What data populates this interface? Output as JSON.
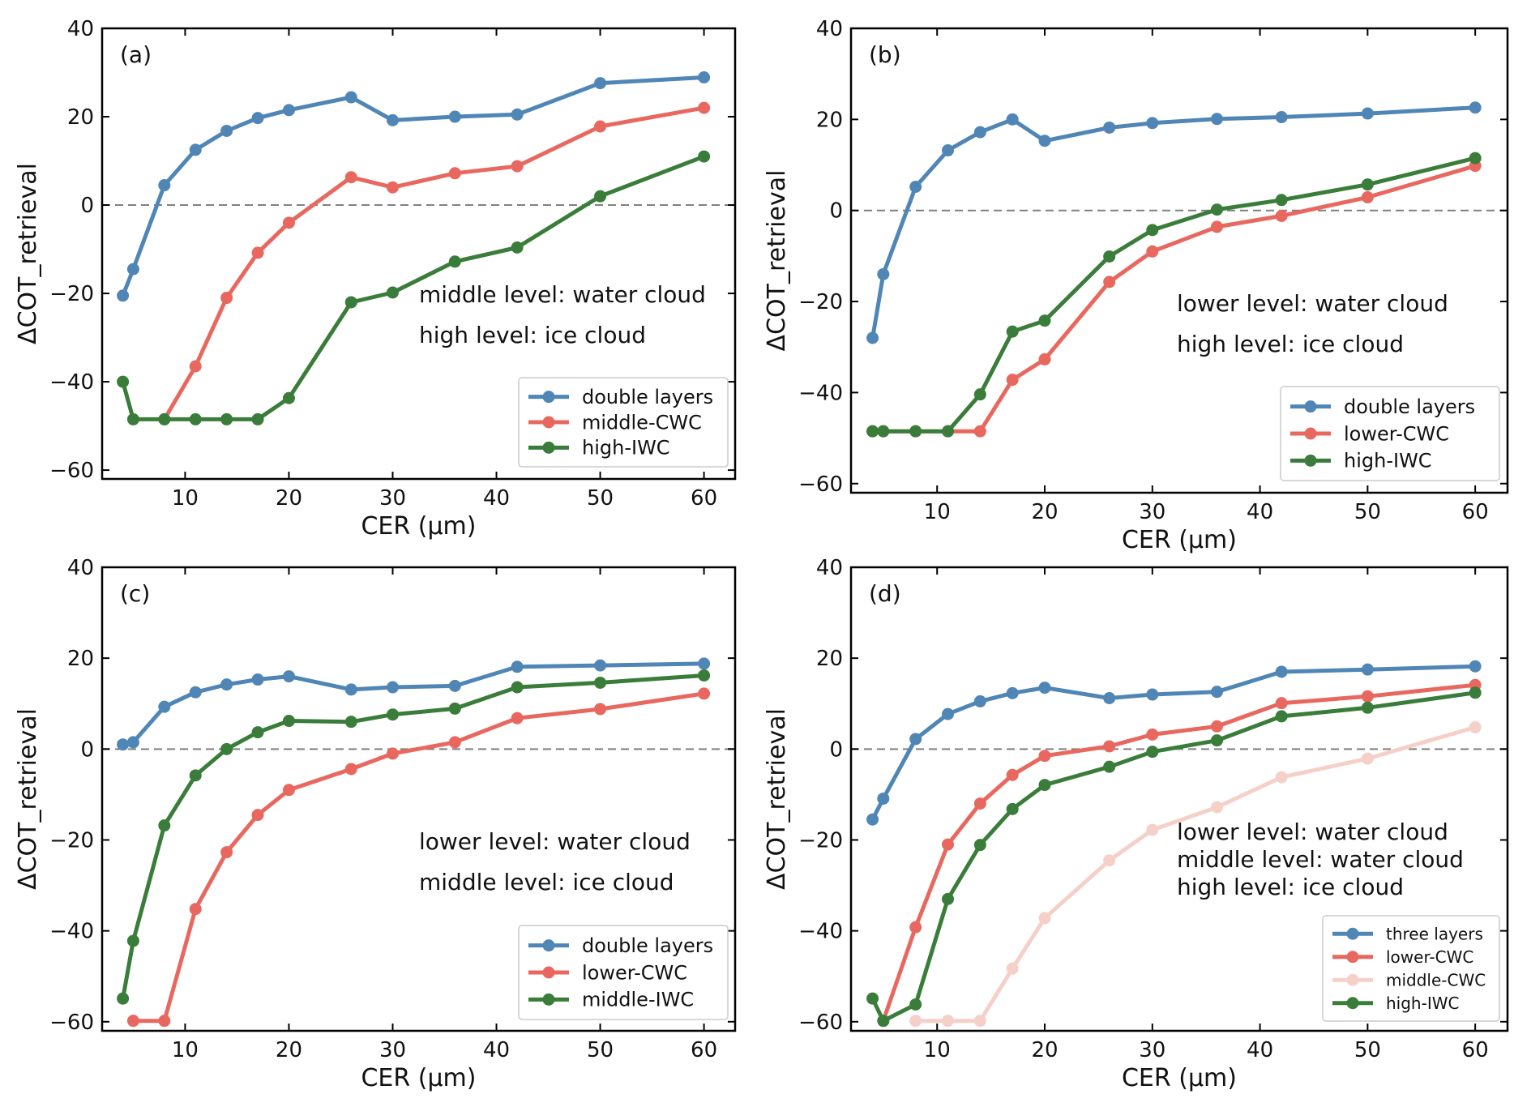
{
  "chart_data": [
    {
      "type": "line",
      "panel_label": "(a)",
      "xlabel": "CER (µm)",
      "ylabel": "ΔCOT_retrieval",
      "xlim": [
        2,
        63
      ],
      "ylim": [
        -62,
        40
      ],
      "xticks": [
        "10",
        "20",
        "30",
        "40",
        "50",
        "60"
      ],
      "yticks": [
        "−60",
        "−40",
        "−20",
        "0",
        "20",
        "40"
      ],
      "annotations": [
        "middle level: water cloud",
        "high level: ice cloud"
      ],
      "legend_position": "lower-right",
      "series": [
        {
          "name": "double layers",
          "color": "#5086b5",
          "x": [
            4,
            5,
            8,
            11,
            14,
            17,
            20,
            26,
            30,
            36,
            42,
            50,
            60
          ],
          "y": [
            -20.5,
            -14.5,
            4.5,
            12.5,
            16.8,
            19.7,
            21.5,
            24.4,
            19.2,
            20.0,
            20.5,
            27.6,
            28.9
          ]
        },
        {
          "name": "middle-CWC",
          "color": "#e8685f",
          "x": [
            8,
            11,
            14,
            17,
            20,
            26,
            30,
            36,
            42,
            50,
            60
          ],
          "y": [
            -48.5,
            -36.5,
            -21.0,
            -10.8,
            -4.0,
            6.3,
            4.0,
            7.2,
            8.8,
            17.8,
            22.0
          ]
        },
        {
          "name": "high-IWC",
          "color": "#3a7d3a",
          "x": [
            4,
            5,
            8,
            11,
            14,
            17,
            20,
            26,
            30,
            36,
            42,
            50,
            60
          ],
          "y": [
            -40.0,
            -48.5,
            -48.5,
            -48.5,
            -48.5,
            -48.5,
            -43.7,
            -22.0,
            -19.8,
            -12.8,
            -9.6,
            2.0,
            11.0
          ]
        }
      ]
    },
    {
      "type": "line",
      "panel_label": "(b)",
      "xlabel": "CER (µm)",
      "ylabel": "ΔCOT_retrieval",
      "xlim": [
        2,
        63
      ],
      "ylim": [
        -62,
        40
      ],
      "xticks": [
        "10",
        "20",
        "30",
        "40",
        "50",
        "60"
      ],
      "yticks": [
        "−60",
        "−40",
        "−20",
        "0",
        "20",
        "40"
      ],
      "annotations": [
        "lower level: water cloud",
        "high level: ice cloud"
      ],
      "legend_position": "lower-right",
      "series": [
        {
          "name": "double layers",
          "color": "#5086b5",
          "x": [
            4,
            5,
            8,
            11,
            14,
            17,
            20,
            26,
            30,
            36,
            42,
            50,
            60
          ],
          "y": [
            -28.0,
            -14.0,
            5.2,
            13.2,
            17.2,
            20.0,
            15.3,
            18.2,
            19.2,
            20.1,
            20.5,
            21.3,
            22.6
          ]
        },
        {
          "name": "lower-CWC",
          "color": "#e8685f",
          "x": [
            4,
            5,
            8,
            11,
            14,
            17,
            20,
            26,
            30,
            36,
            42,
            50,
            60
          ],
          "y": [
            -48.5,
            -48.5,
            -48.5,
            -48.5,
            -48.5,
            -37.2,
            -32.7,
            -15.7,
            -9.0,
            -3.6,
            -1.2,
            2.9,
            9.8
          ]
        },
        {
          "name": "high-IWC",
          "color": "#3a7d3a",
          "x": [
            4,
            5,
            8,
            11,
            14,
            17,
            20,
            26,
            30,
            36,
            42,
            50,
            60
          ],
          "y": [
            -48.5,
            -48.5,
            -48.5,
            -48.5,
            -40.4,
            -26.6,
            -24.2,
            -10.1,
            -4.3,
            0.2,
            2.3,
            5.7,
            11.5
          ]
        }
      ]
    },
    {
      "type": "line",
      "panel_label": "(c)",
      "xlabel": "CER (µm)",
      "ylabel": "ΔCOT_retrieval",
      "xlim": [
        2,
        63
      ],
      "ylim": [
        -62,
        40
      ],
      "xticks": [
        "10",
        "20",
        "30",
        "40",
        "50",
        "60"
      ],
      "yticks": [
        "−60",
        "−40",
        "−20",
        "0",
        "20",
        "40"
      ],
      "annotations": [
        "lower level: water cloud",
        "middle level: ice cloud"
      ],
      "legend_position": "lower-right",
      "series": [
        {
          "name": "double layers",
          "color": "#5086b5",
          "x": [
            4,
            5,
            8,
            11,
            14,
            17,
            20,
            26,
            30,
            36,
            42,
            50,
            60
          ],
          "y": [
            1.0,
            1.5,
            9.3,
            12.5,
            14.2,
            15.3,
            16.0,
            13.1,
            13.6,
            13.9,
            18.1,
            18.4,
            18.8
          ]
        },
        {
          "name": "lower-CWC",
          "color": "#e8685f",
          "x": [
            5,
            8,
            11,
            14,
            17,
            20,
            26,
            30,
            36,
            42,
            50,
            60
          ],
          "y": [
            -59.8,
            -59.8,
            -35.2,
            -22.7,
            -14.5,
            -9.0,
            -4.4,
            -1.0,
            1.5,
            6.8,
            8.8,
            12.2
          ]
        },
        {
          "name": "middle-IWC",
          "color": "#3a7d3a",
          "x": [
            4,
            5,
            8,
            11,
            14,
            17,
            20,
            26,
            30,
            36,
            42,
            50,
            60
          ],
          "y": [
            -54.9,
            -42.2,
            -16.8,
            -5.8,
            0.0,
            3.7,
            6.2,
            6.0,
            7.6,
            8.9,
            13.6,
            14.6,
            16.2
          ]
        }
      ]
    },
    {
      "type": "line",
      "panel_label": "(d)",
      "xlabel": "CER (µm)",
      "ylabel": "ΔCOT_retrieval",
      "xlim": [
        2,
        63
      ],
      "ylim": [
        -62,
        40
      ],
      "xticks": [
        "10",
        "20",
        "30",
        "40",
        "50",
        "60"
      ],
      "yticks": [
        "−60",
        "−40",
        "−20",
        "0",
        "20",
        "40"
      ],
      "annotations": [
        "lower level: water cloud",
        "middle level: water cloud",
        "high level: ice cloud"
      ],
      "legend_position": "lower-right",
      "series": [
        {
          "name": "three layers",
          "color": "#5086b5",
          "x": [
            4,
            5,
            8,
            11,
            14,
            17,
            20,
            26,
            30,
            36,
            42,
            50,
            60
          ],
          "y": [
            -15.5,
            -10.9,
            2.2,
            7.7,
            10.5,
            12.3,
            13.5,
            11.2,
            12.0,
            12.6,
            17.0,
            17.5,
            18.2
          ]
        },
        {
          "name": "lower-CWC",
          "color": "#e8685f",
          "x": [
            5,
            8,
            11,
            14,
            17,
            20,
            26,
            30,
            36,
            42,
            50,
            60
          ],
          "y": [
            -59.8,
            -39.2,
            -21.0,
            -12.0,
            -5.7,
            -1.5,
            0.6,
            3.2,
            5.0,
            10.1,
            11.6,
            14.1
          ]
        },
        {
          "name": "middle-CWC",
          "color": "#f5d0c8",
          "x": [
            8,
            11,
            14,
            17,
            20,
            26,
            30,
            36,
            42,
            50,
            60
          ],
          "y": [
            -59.8,
            -59.8,
            -59.8,
            -48.3,
            -37.2,
            -24.5,
            -17.8,
            -12.8,
            -6.2,
            -2.1,
            4.8
          ]
        },
        {
          "name": "high-IWC",
          "color": "#3a7d3a",
          "x": [
            4,
            5,
            8,
            11,
            14,
            17,
            20,
            26,
            30,
            36,
            42,
            50,
            60
          ],
          "y": [
            -54.9,
            -59.8,
            -56.2,
            -33.0,
            -21.1,
            -13.2,
            -7.9,
            -3.9,
            -0.6,
            1.9,
            7.2,
            9.1,
            12.4
          ]
        }
      ]
    }
  ]
}
